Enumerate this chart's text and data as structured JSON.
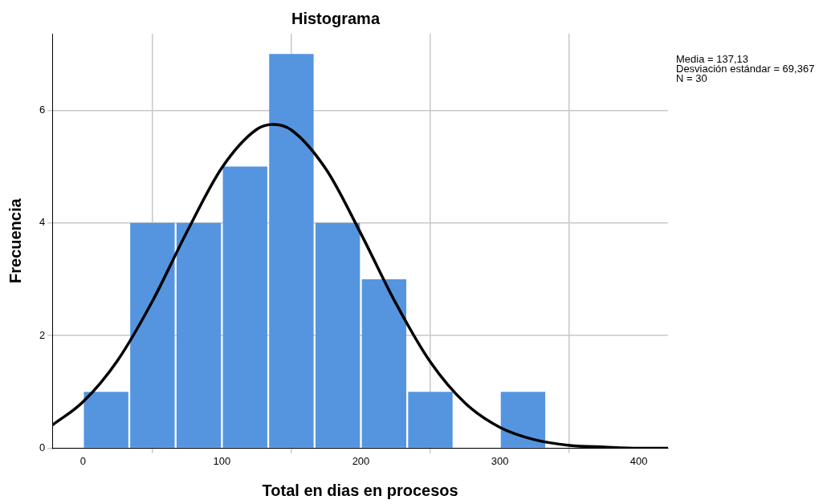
{
  "chart_data": {
    "type": "histogram",
    "title": "Histograma",
    "xlabel": "Total en dias en procesos",
    "ylabel": "Frecuencia",
    "bins": [
      0,
      33.33,
      66.67,
      100,
      133.33,
      166.67,
      200,
      233.33,
      266.67,
      300,
      333.33
    ],
    "values": [
      1,
      4,
      4,
      5,
      7,
      4,
      3,
      1,
      0,
      1
    ],
    "color": "#5595e0",
    "series": [
      {
        "type": "line",
        "color": "#000000",
        "x": [
          -22,
          0,
          25,
          50,
          75,
          100,
          125,
          137,
          150,
          175,
          200,
          225,
          250,
          275,
          300,
          325,
          350,
          375,
          400,
          421
        ],
        "values": [
          0.41,
          0.82,
          1.56,
          2.61,
          3.85,
          4.98,
          5.66,
          5.75,
          5.65,
          4.95,
          3.81,
          2.58,
          1.53,
          0.8,
          0.37,
          0.15,
          0.05,
          0.02,
          0.0,
          0.0
        ]
      }
    ],
    "xlim": [
      -22,
      421
    ],
    "xticks": [
      0,
      100,
      200,
      300,
      400
    ],
    "ylim": [
      0,
      7.36
    ],
    "yticks": [
      0,
      2,
      4,
      6
    ],
    "grid": true,
    "legend": false,
    "marker": "none",
    "annotations": [
      "Media = 137,13",
      "Desviación estándar = 69,367",
      "N = 30"
    ]
  }
}
